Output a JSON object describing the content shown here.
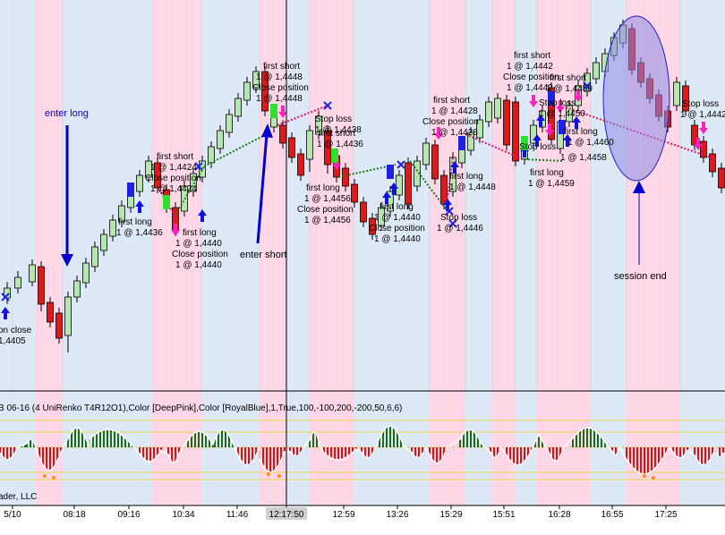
{
  "chart_data": {
    "type": "candlestick",
    "price_panel": {
      "annotations": [
        {
          "text": "enter long",
          "color": "#0000cc"
        },
        {
          "text": "enter short",
          "color": "#000000"
        },
        {
          "text": "session end",
          "color": "#000000"
        },
        {
          "text": "on close",
          "color": "#000000"
        },
        {
          "text": "1,4405",
          "color": "#000000"
        },
        {
          "text": "first long",
          "color": "#000000"
        },
        {
          "text": "1 @ 1,4436",
          "color": "#000000"
        },
        {
          "text": "first short",
          "color": "#000000"
        },
        {
          "text": "1 @ 1,4424",
          "color": "#000000"
        },
        {
          "text": "Close position",
          "color": "#000000"
        },
        {
          "text": "1 @ 1,4424",
          "color": "#000000"
        },
        {
          "text": "first long",
          "color": "#000000"
        },
        {
          "text": "1 @ 1,4440",
          "color": "#000000"
        },
        {
          "text": "Close position",
          "color": "#000000"
        },
        {
          "text": "1 @ 1,4440",
          "color": "#000000"
        },
        {
          "text": "first short",
          "color": "#000000"
        },
        {
          "text": "1 @ 1,4448",
          "color": "#000000"
        },
        {
          "text": "Close position",
          "color": "#000000"
        },
        {
          "text": "1 @ 1,4448",
          "color": "#000000"
        },
        {
          "text": "Stop loss",
          "color": "#000000"
        },
        {
          "text": "1 @ 1,4438",
          "color": "#000000"
        },
        {
          "text": "first short",
          "color": "#000000"
        },
        {
          "text": "1 @ 1,4436",
          "color": "#000000"
        },
        {
          "text": "first long",
          "color": "#000000"
        },
        {
          "text": "1 @ 1,4456",
          "color": "#000000"
        },
        {
          "text": "Close position",
          "color": "#000000"
        },
        {
          "text": "1 @ 1,4456",
          "color": "#000000"
        },
        {
          "text": "first long",
          "color": "#000000"
        },
        {
          "text": "1 @ 1,4440",
          "color": "#000000"
        },
        {
          "text": "Close position",
          "color": "#000000"
        },
        {
          "text": "1 @ 1,4440",
          "color": "#000000"
        },
        {
          "text": "first short",
          "color": "#000000"
        },
        {
          "text": "1 @ 1,4428",
          "color": "#000000"
        },
        {
          "text": "Close position",
          "color": "#000000"
        },
        {
          "text": "1 @ 1,4428",
          "color": "#000000"
        },
        {
          "text": "first long",
          "color": "#000000"
        },
        {
          "text": "1 @ 1,4448",
          "color": "#000000"
        },
        {
          "text": "Stop loss",
          "color": "#000000"
        },
        {
          "text": "1 @ 1,4446",
          "color": "#000000"
        },
        {
          "text": "first short",
          "color": "#000000"
        },
        {
          "text": "1 @ 1,4442",
          "color": "#000000"
        },
        {
          "text": "Close position",
          "color": "#000000"
        },
        {
          "text": "1 @ 1,4442",
          "color": "#000000"
        },
        {
          "text": "first short",
          "color": "#000000"
        },
        {
          "text": "1 @ 1,4450",
          "color": "#000000"
        },
        {
          "text": "Stop loss",
          "color": "#000000"
        },
        {
          "text": "1 @ 1,4450",
          "color": "#000000"
        },
        {
          "text": "Stop loss",
          "color": "#000000"
        },
        {
          "text": "1 @ 1,4458",
          "color": "#000000"
        },
        {
          "text": "first long",
          "color": "#000000"
        },
        {
          "text": "1 @ 1,4460",
          "color": "#000000"
        },
        {
          "text": "first long",
          "color": "#000000"
        },
        {
          "text": "1 @ 1,4459",
          "color": "#000000"
        },
        {
          "text": "Stop loss",
          "color": "#000000"
        },
        {
          "text": "1 @ 1,4442",
          "color": "#000000"
        }
      ]
    },
    "indicator_panel": {
      "title": "B 06-16 (4 UniRenko T4R12O1),Color [DeepPink],Color [RoyalBlue],1,True,100,-100,200,-200,50,6,6)",
      "watermark": "ader, LLC"
    },
    "x_ticks": [
      "5/10",
      "08:18",
      "09:16",
      "10:34",
      "11:46",
      "12:17:50",
      "12:59",
      "13:26",
      "15:29",
      "15:51",
      "16:28",
      "16:55",
      "17:25"
    ],
    "highlighted_tick": "12:17:50",
    "colors": {
      "session_pink": "#ffd6e6",
      "session_blue": "#dde8f6",
      "candle_up": "#b8e6b0",
      "candle_down": "#e01818",
      "long_arrow": "#1010e0",
      "short_arrow": "#ff20c0",
      "trade_line_long": "#1a7a1a",
      "trade_line_short": "#e0106a",
      "hist_up": "#1a6a1a",
      "hist_down": "#e01010",
      "ellipse_fill": "#8c8ce6"
    }
  }
}
